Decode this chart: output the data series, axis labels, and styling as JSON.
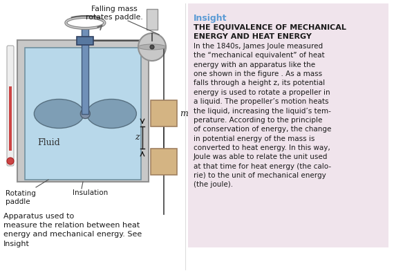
{
  "insight_title": "Insight",
  "insight_heading1": "THE EQUIVALENCE OF MECHANICAL",
  "insight_heading2": "ENERGY AND HEAT ENERGY",
  "insight_body": "In the 1840s, James Joule measured\nthe “mechanical equivalent” of heat\nenergy with an apparatus like the\none shown in the figure . As a mass\nfalls through a height z, its potential\nenergy is used to rotate a propeller in\na liquid. The propeller’s motion heats\nthe liquid, increasing the liquid’s tem-\nperature. According to the principle\nof conservation of energy, the change\nin potential energy of the mass is\nconverted to heat energy. In this way,\nJoule was able to relate the unit used\nat that time for heat energy (the calo-\nrie) to the unit of mechanical energy\n(the joule).",
  "caption": "Apparatus used to\nmeasure the relation between heat\nenergy and mechanical energy. See\nInsight",
  "label_falling": "Falling mass\nrotates paddle.",
  "label_fluid": "Fluid",
  "label_rotating": "Rotating\npaddle",
  "label_insulation": "Insulation",
  "label_m": "m",
  "label_z": "z",
  "bg_color": "#ffffff",
  "insight_bg": "#f0e4ec",
  "insight_title_color": "#5b9bd5",
  "tank_fill": "#b8d8ea",
  "insulation_fill": "#c8c8c8",
  "insulation_edge": "#909090",
  "fluid_edge": "#7090a0",
  "mass_fill": "#d4b483",
  "mass_edge": "#a08060",
  "paddle_fill": "#7090a8",
  "paddle_edge": "#506070",
  "pulley_fill": "#c8c8c8",
  "pulley_edge": "#909090",
  "shaft_fill": "#5878a0",
  "collar_fill": "#6080a0",
  "thermo_bg": "#dddddd",
  "thermo_fg": "#cc4444",
  "string_color": "#404040",
  "line_color": "#404040"
}
